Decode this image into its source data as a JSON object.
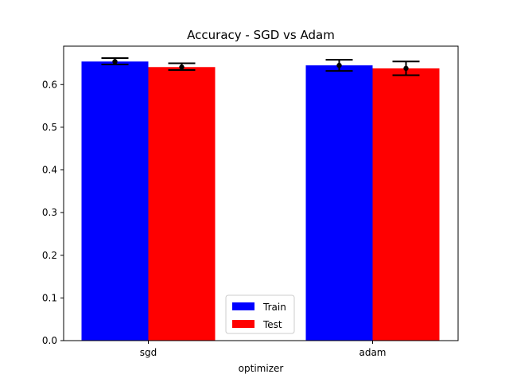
{
  "chart_data": {
    "type": "bar",
    "title": "Accuracy - SGD vs Adam",
    "xlabel": "optimizer",
    "ylabel": "",
    "categories": [
      "sgd",
      "adam"
    ],
    "ylim": [
      0,
      0.69
    ],
    "yticks": [
      0.0,
      0.1,
      0.2,
      0.3,
      0.4,
      0.5,
      0.6
    ],
    "ytick_labels": [
      "0.0",
      "0.1",
      "0.2",
      "0.3",
      "0.4",
      "0.5",
      "0.6"
    ],
    "grid": false,
    "legend_position": "lower-center",
    "series": [
      {
        "name": "Train",
        "color": "#0000ff",
        "values": [
          0.654,
          0.645
        ],
        "error_low": [
          0.647,
          0.632
        ],
        "error_high": [
          0.662,
          0.658
        ]
      },
      {
        "name": "Test",
        "color": "#ff0000",
        "values": [
          0.641,
          0.638
        ],
        "error_low": [
          0.634,
          0.622
        ],
        "error_high": [
          0.65,
          0.654
        ]
      }
    ]
  }
}
